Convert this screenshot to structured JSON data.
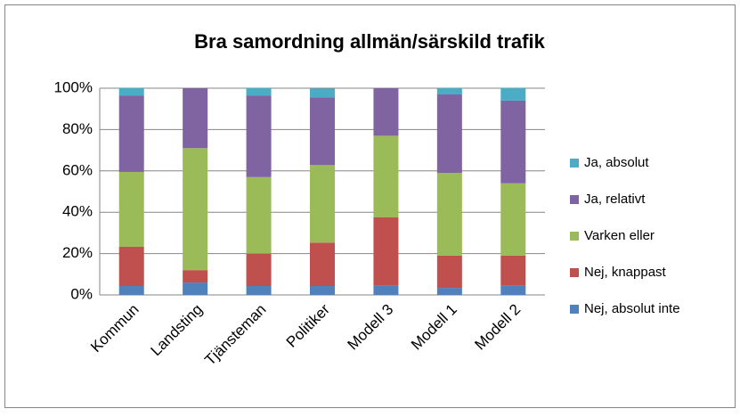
{
  "chart_data": {
    "type": "stacked_bar",
    "title": "Bra samordning allmän/särskild trafik",
    "categories": [
      "Kommun",
      "Landsting",
      "Tjänsteman",
      "Politiker",
      "Modell 3",
      "Modell 1",
      "Modell 2"
    ],
    "series": [
      {
        "name": "Nej, absolut inte",
        "color": "#4f81bd",
        "values": [
          4.3,
          6,
          4.3,
          4.3,
          4.7,
          3.4,
          4.7
        ]
      },
      {
        "name": "Nej, knappast",
        "color": "#c0504d",
        "values": [
          19,
          6,
          15.7,
          21,
          32.8,
          15.6,
          14.3
        ]
      },
      {
        "name": "Varken eller",
        "color": "#9bbb59",
        "values": [
          36.2,
          59,
          37,
          37.5,
          39.5,
          40,
          35
        ]
      },
      {
        "name": "Ja, relativt",
        "color": "#8064a2",
        "values": [
          37,
          29,
          39.5,
          32.7,
          23,
          38,
          40
        ]
      },
      {
        "name": "Ja, absolut",
        "color": "#4bacc6",
        "values": [
          3.5,
          0,
          3.5,
          4.3,
          0,
          3,
          6
        ]
      }
    ],
    "ylim": [
      0,
      100
    ],
    "yticks": [
      {
        "value": 0,
        "label": "0%"
      },
      {
        "value": 20,
        "label": "20%"
      },
      {
        "value": 40,
        "label": "40%"
      },
      {
        "value": 60,
        "label": "60%"
      },
      {
        "value": 80,
        "label": "80%"
      },
      {
        "value": 100,
        "label": "100%"
      }
    ],
    "grid": true,
    "legend": "right"
  }
}
